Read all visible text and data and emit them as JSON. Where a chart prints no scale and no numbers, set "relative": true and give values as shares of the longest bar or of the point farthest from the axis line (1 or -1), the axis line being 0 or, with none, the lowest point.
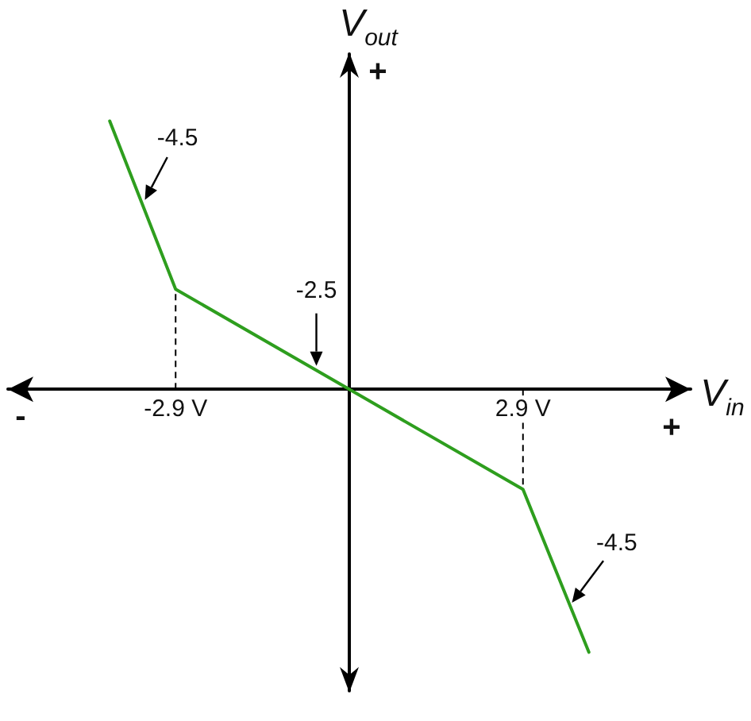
{
  "chart_data": {
    "type": "line",
    "relative": true,
    "xlabel": "V$_{in}$",
    "ylabel": "V$_{out}$",
    "x": [
      -4,
      -2.9,
      0,
      2.9,
      4
    ],
    "series": [
      {
        "color": "#2e9e1e",
        "values": [
          1,
          0.373,
          0,
          -0.373,
          -0.98
        ]
      }
    ],
    "xlim": [
      -5.7,
      5.7
    ],
    "xticks": [
      {
        "value": -2.9,
        "label": "-2.9 V"
      },
      {
        "value": 2.9,
        "label": "2.9 V"
      }
    ],
    "tick_labels": "x",
    "grid": false,
    "marker": "none",
    "line_style": "solid",
    "annotations": [
      {
        "text": "-4.5",
        "x": -3.45,
        "y": 0.69
      },
      {
        "text": "-2.5",
        "x": -0.55,
        "y": 0.07
      },
      {
        "text": "-4.5",
        "x": 3.67,
        "y": -0.81
      },
      "+",
      "-",
      "+"
    ]
  }
}
